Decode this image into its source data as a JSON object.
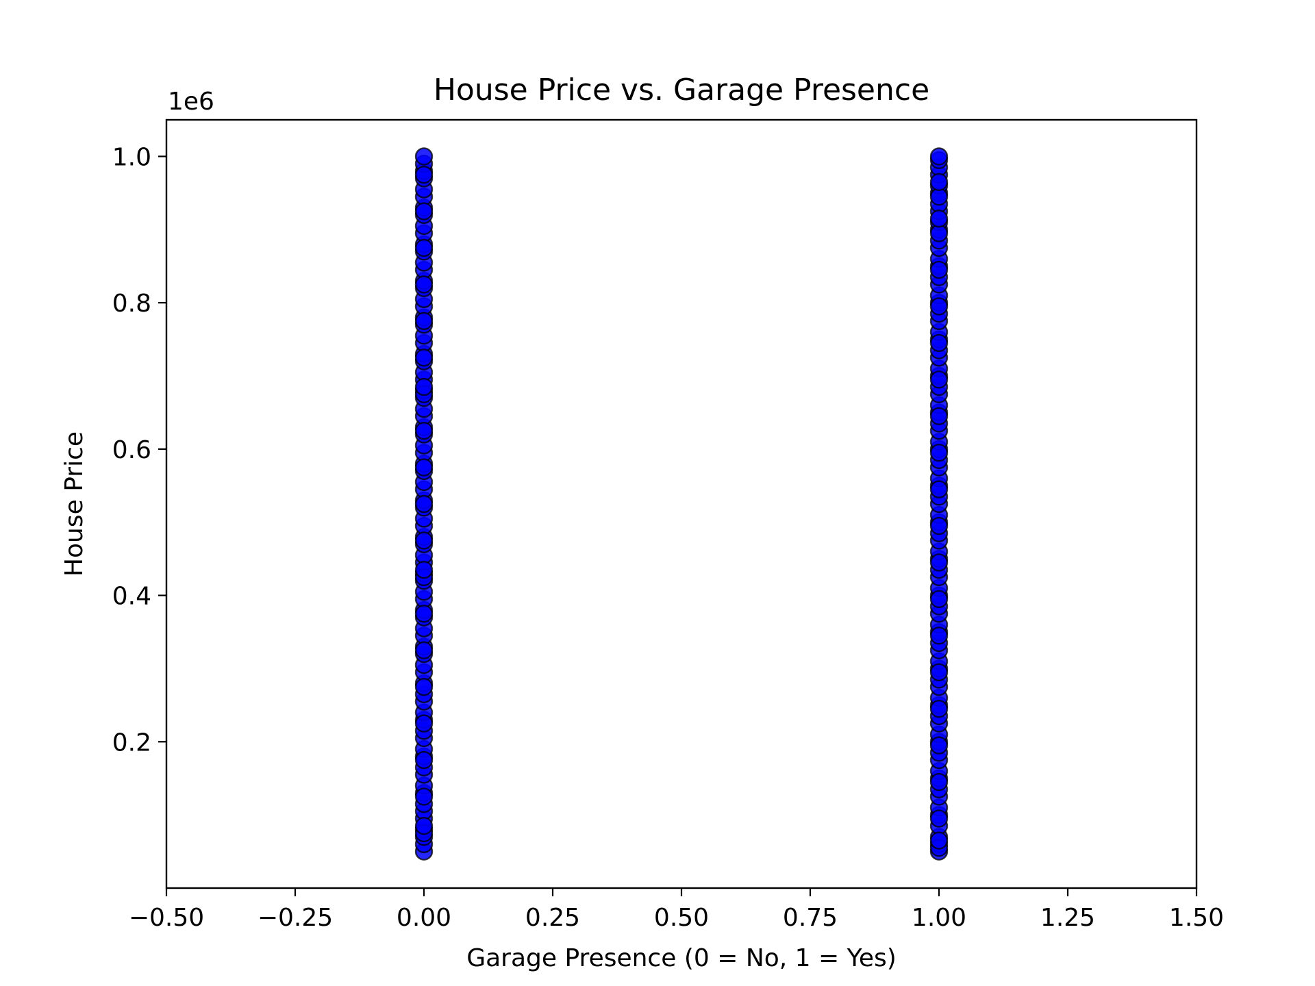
{
  "chart_data": {
    "type": "scatter",
    "title": "House Price vs. Garage Presence",
    "xlabel": "Garage Presence (0 = No, 1 = Yes)",
    "ylabel": "House Price",
    "y_offset_label": "1e6",
    "xlim": [
      -0.5,
      1.5
    ],
    "ylim": [
      0.0,
      1.05
    ],
    "x_ticks": [
      -0.5,
      -0.25,
      0.0,
      0.25,
      0.5,
      0.75,
      1.0,
      1.25,
      1.5
    ],
    "x_tick_labels": [
      "−0.50",
      "−0.25",
      "0.00",
      "0.25",
      "0.50",
      "0.75",
      "1.00",
      "1.25",
      "1.50"
    ],
    "y_ticks": [
      0.2,
      0.4,
      0.6,
      0.8,
      1.0
    ],
    "y_tick_labels": [
      "0.2",
      "0.4",
      "0.6",
      "0.8",
      "1.0"
    ],
    "grid": false,
    "marker_color": "#0000ff",
    "marker_edge_color": "#000000",
    "series": [
      {
        "x": [
          0,
          0,
          0,
          0,
          0,
          0,
          0,
          0,
          0,
          0,
          0,
          0,
          0,
          0,
          0,
          0,
          0,
          0,
          0,
          0,
          0,
          0,
          0,
          0,
          0,
          0,
          0,
          0,
          0,
          0,
          0,
          0,
          0,
          0,
          0,
          0,
          0,
          0,
          0,
          0,
          0,
          0,
          0,
          0,
          0,
          0,
          0,
          0,
          0,
          0,
          0,
          0,
          0,
          0,
          0,
          0,
          0,
          0,
          0,
          0,
          0,
          0,
          0,
          0,
          0,
          0,
          0,
          0,
          0,
          0,
          0,
          0,
          0,
          0,
          0,
          0,
          0,
          0,
          0,
          0,
          0,
          0,
          0,
          0,
          0,
          0,
          0,
          0,
          0,
          0,
          0,
          0,
          0,
          0,
          0,
          0,
          0,
          0,
          0,
          0,
          1,
          1,
          1,
          1,
          1,
          1,
          1,
          1,
          1,
          1,
          1,
          1,
          1,
          1,
          1,
          1,
          1,
          1,
          1,
          1,
          1,
          1,
          1,
          1,
          1,
          1,
          1,
          1,
          1,
          1,
          1,
          1,
          1,
          1,
          1,
          1,
          1,
          1,
          1,
          1,
          1,
          1,
          1,
          1,
          1,
          1,
          1,
          1,
          1,
          1,
          1,
          1,
          1,
          1,
          1,
          1,
          1,
          1,
          1,
          1,
          1,
          1,
          1,
          1,
          1,
          1,
          1,
          1,
          1,
          1,
          1,
          1,
          1,
          1,
          1,
          1,
          1,
          1,
          1,
          1,
          1,
          1,
          1,
          1,
          1,
          1,
          1,
          1,
          1,
          1,
          1,
          1,
          1,
          1,
          1,
          1,
          1,
          1,
          1,
          1
        ],
        "y": [
          0.05,
          0.06,
          0.07,
          0.08,
          0.095,
          0.105,
          0.115,
          0.13,
          0.14,
          0.155,
          0.165,
          0.18,
          0.19,
          0.205,
          0.215,
          0.23,
          0.24,
          0.255,
          0.265,
          0.28,
          0.295,
          0.305,
          0.32,
          0.33,
          0.345,
          0.355,
          0.37,
          0.38,
          0.395,
          0.405,
          0.42,
          0.43,
          0.445,
          0.455,
          0.47,
          0.48,
          0.495,
          0.505,
          0.52,
          0.53,
          0.545,
          0.555,
          0.57,
          0.58,
          0.595,
          0.605,
          0.62,
          0.63,
          0.645,
          0.655,
          0.67,
          0.68,
          0.695,
          0.705,
          0.72,
          0.73,
          0.745,
          0.755,
          0.77,
          0.78,
          0.795,
          0.805,
          0.82,
          0.83,
          0.845,
          0.855,
          0.87,
          0.88,
          0.895,
          0.905,
          0.92,
          0.93,
          0.945,
          0.955,
          0.97,
          0.98,
          0.99,
          1.0,
          0.075,
          0.125,
          0.175,
          0.225,
          0.275,
          0.325,
          0.375,
          0.425,
          0.475,
          0.525,
          0.575,
          0.625,
          0.675,
          0.725,
          0.775,
          0.825,
          0.875,
          0.925,
          0.975,
          0.085,
          0.435,
          0.685,
          0.05,
          0.06,
          0.07,
          0.085,
          0.1,
          0.11,
          0.125,
          0.135,
          0.15,
          0.16,
          0.175,
          0.185,
          0.2,
          0.21,
          0.225,
          0.235,
          0.25,
          0.26,
          0.275,
          0.285,
          0.3,
          0.31,
          0.325,
          0.335,
          0.35,
          0.36,
          0.375,
          0.385,
          0.4,
          0.41,
          0.425,
          0.435,
          0.45,
          0.46,
          0.475,
          0.485,
          0.5,
          0.51,
          0.525,
          0.535,
          0.55,
          0.56,
          0.575,
          0.585,
          0.6,
          0.61,
          0.625,
          0.635,
          0.65,
          0.66,
          0.675,
          0.685,
          0.7,
          0.71,
          0.725,
          0.735,
          0.75,
          0.76,
          0.775,
          0.785,
          0.8,
          0.81,
          0.825,
          0.835,
          0.85,
          0.86,
          0.875,
          0.885,
          0.9,
          0.91,
          0.925,
          0.935,
          0.95,
          0.96,
          0.975,
          0.985,
          0.995,
          1.0,
          0.055,
          0.065,
          0.095,
          0.145,
          0.195,
          0.245,
          0.295,
          0.345,
          0.395,
          0.445,
          0.495,
          0.545,
          0.595,
          0.645,
          0.695,
          0.745,
          0.795,
          0.845,
          0.895,
          0.945,
          0.965,
          0.915
        ]
      }
    ]
  }
}
